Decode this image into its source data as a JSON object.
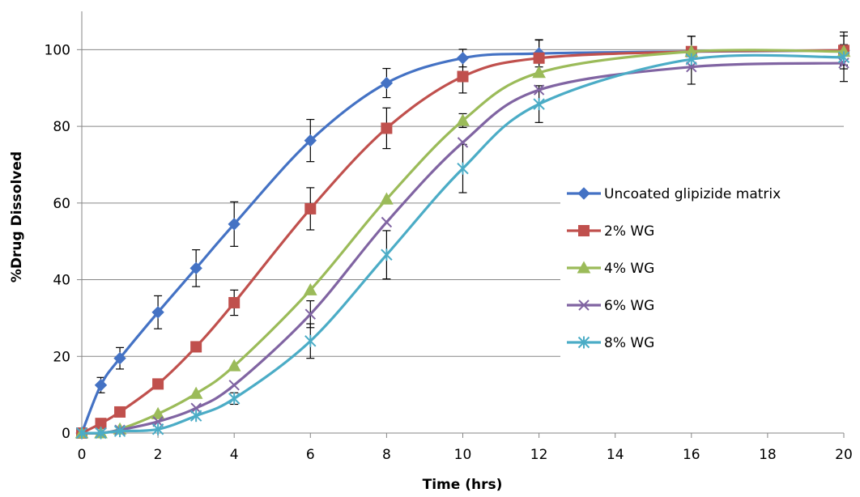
{
  "chart_data": {
    "type": "line",
    "title": "",
    "xlabel": "Time (hrs)",
    "ylabel": "%Drug Dissolved",
    "xlim": [
      0,
      20
    ],
    "ylim": [
      0,
      110
    ],
    "x_ticks": [
      0,
      2,
      4,
      6,
      8,
      10,
      12,
      14,
      16,
      18,
      20
    ],
    "y_ticks": [
      0,
      20,
      40,
      60,
      80,
      100
    ],
    "grid": "horizontal",
    "legend_position": "right",
    "x": [
      0,
      0.5,
      1,
      2,
      3,
      4,
      6,
      8,
      10,
      12,
      16,
      20
    ],
    "series": [
      {
        "name": "Uncoated glipizide matrix",
        "color": "#4472C4",
        "marker": "diamond",
        "values": [
          0,
          12.5,
          19.5,
          31.5,
          43,
          54.5,
          76.3,
          91.3,
          97.8,
          99,
          99.5,
          99.8
        ],
        "errors": [
          0,
          2,
          2.8,
          4.3,
          4.8,
          5.8,
          5.5,
          3.8,
          2.3,
          3.5,
          4,
          4.8
        ]
      },
      {
        "name": "2% WG",
        "color": "#C0504D",
        "marker": "square",
        "values": [
          0,
          2.5,
          5.5,
          12.8,
          22.5,
          34,
          58.5,
          79.5,
          93,
          97.8,
          99.5,
          99.8
        ],
        "errors": [
          0,
          0,
          0,
          0,
          1.3,
          3.3,
          5.5,
          5.3,
          4.3,
          4.8,
          4,
          3.8
        ]
      },
      {
        "name": "4% WG",
        "color": "#9BBB59",
        "marker": "triangle",
        "values": [
          0,
          0,
          1,
          5,
          10.3,
          17.5,
          37.3,
          61,
          81.5,
          94,
          99.5,
          99.5
        ],
        "errors": [
          0,
          0,
          0,
          0,
          0,
          0,
          0,
          0,
          1.8,
          0,
          0,
          0
        ]
      },
      {
        "name": "6% WG",
        "color": "#8064A2",
        "marker": "x",
        "values": [
          0,
          0,
          0.8,
          3,
          6.5,
          12.5,
          31,
          55,
          75.8,
          89.5,
          95.5,
          96.5
        ],
        "errors": [
          0,
          0,
          0,
          0,
          0,
          0,
          3.5,
          0,
          0,
          0,
          4.5,
          4.8
        ]
      },
      {
        "name": "8% WG",
        "color": "#4BACC6",
        "marker": "asterisk",
        "values": [
          0,
          0,
          0.5,
          1,
          4.5,
          9,
          24,
          46.5,
          69,
          85.8,
          97.5,
          98
        ],
        "errors": [
          0,
          0,
          0,
          0,
          0,
          1.5,
          4.5,
          6.3,
          6.3,
          4.8,
          0,
          0
        ]
      }
    ]
  }
}
